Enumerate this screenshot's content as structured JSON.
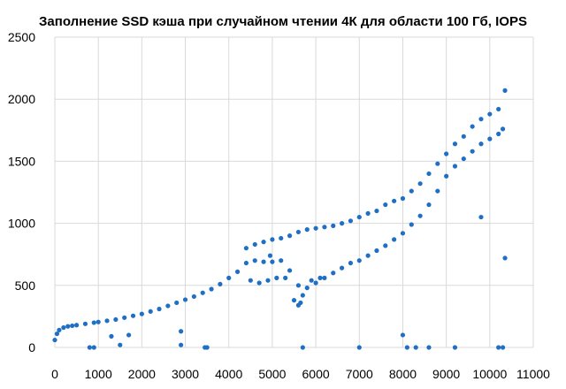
{
  "chart_data": {
    "type": "scatter",
    "title": "Заполнение SSD кэша при случайном чтении 4К для области 100 Гб, IOPS",
    "xlabel": "",
    "ylabel": "",
    "xlim": [
      0,
      11000
    ],
    "ylim": [
      0,
      2500
    ],
    "x_ticks": [
      0,
      1000,
      2000,
      3000,
      4000,
      5000,
      6000,
      7000,
      8000,
      9000,
      10000,
      11000
    ],
    "y_ticks": [
      0,
      500,
      1000,
      1500,
      2000,
      2500
    ],
    "grid": true,
    "legend": "none",
    "series": [
      {
        "color": "#1f6fc5",
        "points": [
          [
            0,
            60
          ],
          [
            50,
            110
          ],
          [
            100,
            140
          ],
          [
            200,
            160
          ],
          [
            300,
            170
          ],
          [
            400,
            175
          ],
          [
            500,
            180
          ],
          [
            700,
            190
          ],
          [
            900,
            200
          ],
          [
            1000,
            205
          ],
          [
            1200,
            215
          ],
          [
            1400,
            225
          ],
          [
            1600,
            240
          ],
          [
            1800,
            255
          ],
          [
            2000,
            270
          ],
          [
            2200,
            290
          ],
          [
            2400,
            310
          ],
          [
            2600,
            335
          ],
          [
            2800,
            360
          ],
          [
            3000,
            385
          ],
          [
            3200,
            410
          ],
          [
            3400,
            440
          ],
          [
            3600,
            470
          ],
          [
            3800,
            510
          ],
          [
            4000,
            560
          ],
          [
            4200,
            610
          ],
          [
            4400,
            680
          ],
          [
            4600,
            700
          ],
          [
            4800,
            690
          ],
          [
            5000,
            690
          ],
          [
            5200,
            700
          ],
          [
            5400,
            620
          ],
          [
            5600,
            500
          ],
          [
            5700,
            420
          ],
          [
            5800,
            480
          ],
          [
            6000,
            520
          ],
          [
            6200,
            560
          ],
          [
            6400,
            600
          ],
          [
            6600,
            640
          ],
          [
            6800,
            680
          ],
          [
            7000,
            700
          ],
          [
            7200,
            740
          ],
          [
            7400,
            780
          ],
          [
            7600,
            820
          ],
          [
            7800,
            870
          ],
          [
            8000,
            920
          ],
          [
            8200,
            990
          ],
          [
            8400,
            1060
          ],
          [
            8600,
            1150
          ],
          [
            8800,
            1260
          ],
          [
            9000,
            1380
          ],
          [
            9200,
            1460
          ],
          [
            9400,
            1520
          ],
          [
            9600,
            1580
          ],
          [
            9800,
            1640
          ],
          [
            10000,
            1680
          ],
          [
            10200,
            1720
          ],
          [
            10300,
            1760
          ],
          [
            4400,
            800
          ],
          [
            4600,
            830
          ],
          [
            4800,
            850
          ],
          [
            5000,
            870
          ],
          [
            5200,
            880
          ],
          [
            5400,
            900
          ],
          [
            5600,
            930
          ],
          [
            5800,
            950
          ],
          [
            6000,
            960
          ],
          [
            6200,
            970
          ],
          [
            6400,
            980
          ],
          [
            6600,
            1000
          ],
          [
            6800,
            1020
          ],
          [
            7000,
            1050
          ],
          [
            7200,
            1080
          ],
          [
            7400,
            1100
          ],
          [
            7600,
            1150
          ],
          [
            7800,
            1180
          ],
          [
            8000,
            1200
          ],
          [
            8200,
            1260
          ],
          [
            8400,
            1320
          ],
          [
            8600,
            1400
          ],
          [
            8800,
            1480
          ],
          [
            9000,
            1560
          ],
          [
            9200,
            1640
          ],
          [
            9400,
            1700
          ],
          [
            9600,
            1780
          ],
          [
            9800,
            1840
          ],
          [
            10000,
            1880
          ],
          [
            10200,
            1920
          ],
          [
            10350,
            2070
          ],
          [
            4500,
            540
          ],
          [
            4700,
            520
          ],
          [
            4900,
            540
          ],
          [
            5100,
            560
          ],
          [
            5300,
            560
          ],
          [
            5500,
            380
          ],
          [
            5600,
            340
          ],
          [
            5650,
            360
          ],
          [
            5900,
            540
          ],
          [
            6100,
            560
          ],
          [
            1500,
            20
          ],
          [
            2900,
            20
          ],
          [
            3450,
            0
          ],
          [
            3500,
            0
          ],
          [
            5700,
            0
          ],
          [
            7000,
            0
          ],
          [
            8100,
            0
          ],
          [
            8300,
            0
          ],
          [
            8600,
            0
          ],
          [
            9200,
            0
          ],
          [
            10200,
            0
          ],
          [
            10300,
            0
          ],
          [
            9800,
            1050
          ],
          [
            10350,
            720
          ],
          [
            4950,
            740
          ],
          [
            8000,
            100
          ],
          [
            1300,
            90
          ],
          [
            1700,
            100
          ],
          [
            900,
            0
          ],
          [
            800,
            0
          ],
          [
            2900,
            130
          ]
        ]
      }
    ]
  }
}
